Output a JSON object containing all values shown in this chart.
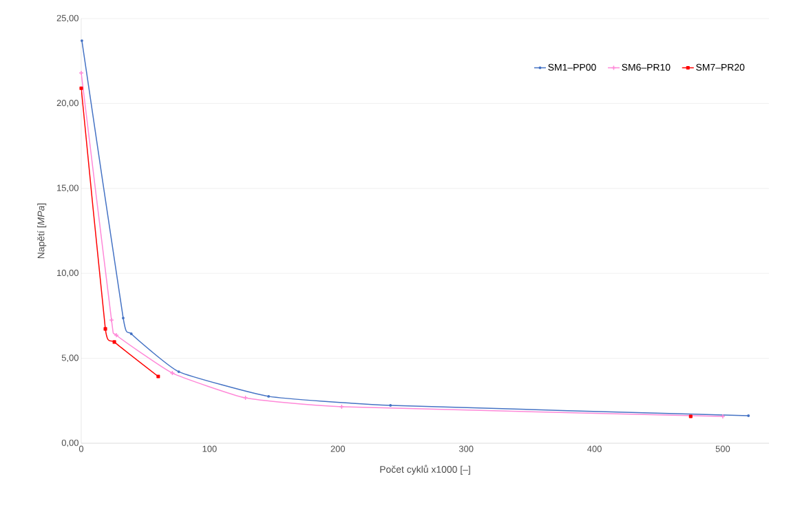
{
  "chart_data": {
    "type": "line",
    "xlabel": "Počet cyklů x1000 [–]",
    "ylabel": "Napětí [*MPa*]",
    "xlim": [
      0,
      536
    ],
    "xticks": [
      0,
      100,
      200,
      300,
      400,
      500
    ],
    "ylim": [
      0,
      25
    ],
    "yticks": [
      {
        "value": 0,
        "label": "0,00"
      },
      {
        "value": 5,
        "label": "5,00"
      },
      {
        "value": 10,
        "label": "10,00"
      },
      {
        "value": 15,
        "label": "15,00"
      },
      {
        "value": 20,
        "label": "20,00"
      },
      {
        "value": 25,
        "label": "25,00"
      }
    ],
    "grid": "y",
    "legend": "top right",
    "series": [
      {
        "name": "SM1–PP00",
        "color": "#4472c4",
        "marker": "circle",
        "x": [
          0.5,
          32.7,
          39,
          76,
          146,
          241,
          520
        ],
        "values": [
          23.7,
          7.37,
          6.44,
          4.21,
          2.76,
          2.23,
          1.62
        ]
      },
      {
        "name": "SM6–PR10",
        "color": "#ff88d8",
        "marker": "cross",
        "x": [
          0,
          23.6,
          27.4,
          71,
          128,
          203,
          500
        ],
        "values": [
          21.8,
          7.25,
          6.36,
          4.13,
          2.67,
          2.15,
          1.58
        ]
      },
      {
        "name": "SM7–PR20",
        "color": "#ff0000",
        "marker": "square",
        "x": [
          0,
          18.8,
          25.8,
          60
        ],
        "values": [
          20.9,
          6.73,
          5.96,
          3.93
        ]
      },
      {
        "type": "scatter",
        "color": "#ff0000",
        "marker": "square",
        "x": [
          475
        ],
        "values": [
          1.58
        ]
      }
    ]
  }
}
